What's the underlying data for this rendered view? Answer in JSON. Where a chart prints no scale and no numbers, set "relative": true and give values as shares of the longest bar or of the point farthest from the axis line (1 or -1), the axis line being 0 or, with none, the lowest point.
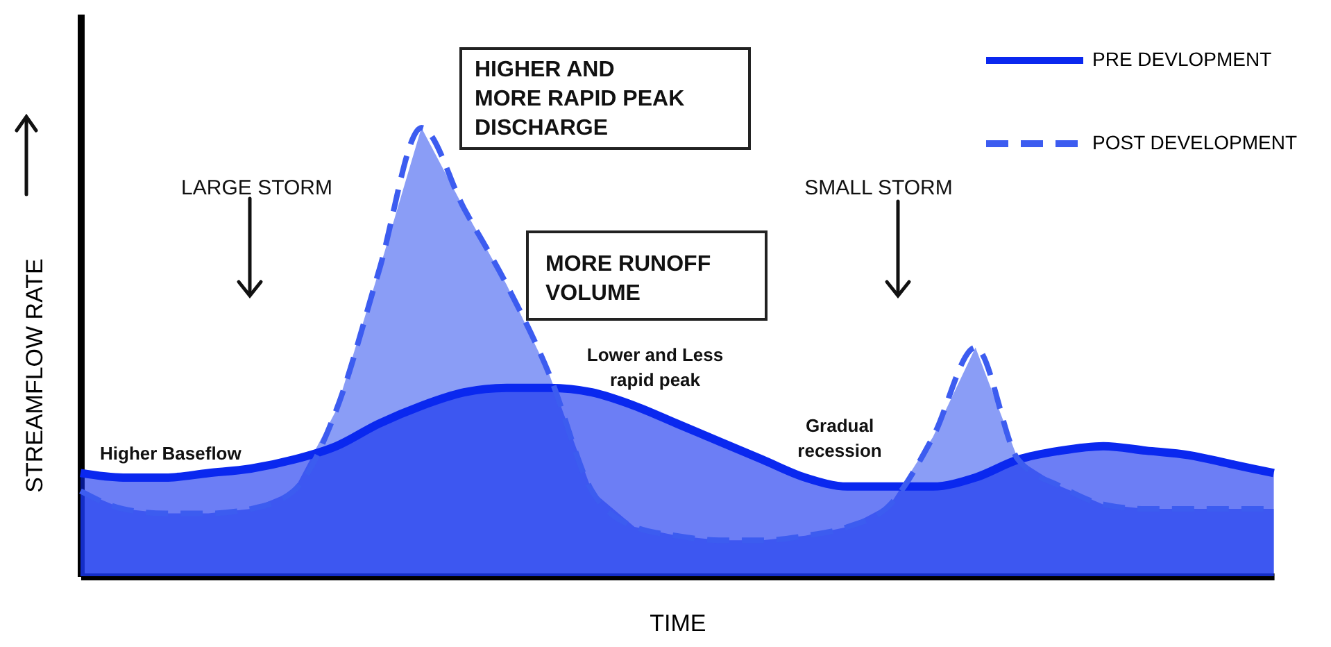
{
  "chart_data": {
    "type": "area",
    "relative": true,
    "xlabel": "TIME",
    "ylabel": "STREAMFLOW RATE",
    "categories": [
      null,
      null,
      null,
      null,
      null,
      null,
      null,
      null,
      null,
      null,
      null,
      null,
      null,
      null,
      null,
      null,
      null,
      null,
      null,
      null,
      null,
      null,
      null,
      null,
      null,
      null,
      null,
      null,
      null
    ],
    "series": [
      {
        "name": "PRE DEVLOPMENT",
        "color": "#0a28ef",
        "line_style": "solid",
        "values": [
          0.23,
          0.22,
          0.22,
          0.23,
          0.24,
          0.26,
          0.29,
          0.34,
          0.38,
          0.41,
          0.42,
          0.42,
          0.41,
          0.38,
          0.34,
          0.3,
          0.26,
          0.22,
          0.2,
          0.2,
          0.2,
          0.22,
          0.26,
          0.28,
          0.29,
          0.28,
          0.27,
          0.25,
          0.23
        ]
      },
      {
        "name": "POST DEVELOPMENT",
        "color": "#3c5cf0",
        "line_style": "dashed",
        "values": [
          0.19,
          0.15,
          0.14,
          0.14,
          0.15,
          0.19,
          0.37,
          0.68,
          1,
          0.82,
          0.65,
          0.45,
          0.19,
          0.11,
          0.09,
          0.08,
          0.08,
          0.09,
          0.11,
          0.16,
          0.31,
          0.51,
          0.26,
          0.2,
          0.16,
          0.15,
          0.15,
          0.15,
          0.15
        ]
      }
    ],
    "annotations": [
      "HIGHER AND\nMORE RAPID PEAK\nDISCHARGE",
      "MORE RUNOFF\nVOLUME",
      "LARGE STORM",
      "SMALL STORM",
      "Higher Baseflow",
      "Lower and Less\nrapid peak",
      "Gradual\nrecession"
    ],
    "legend": "top right",
    "grid": false
  }
}
